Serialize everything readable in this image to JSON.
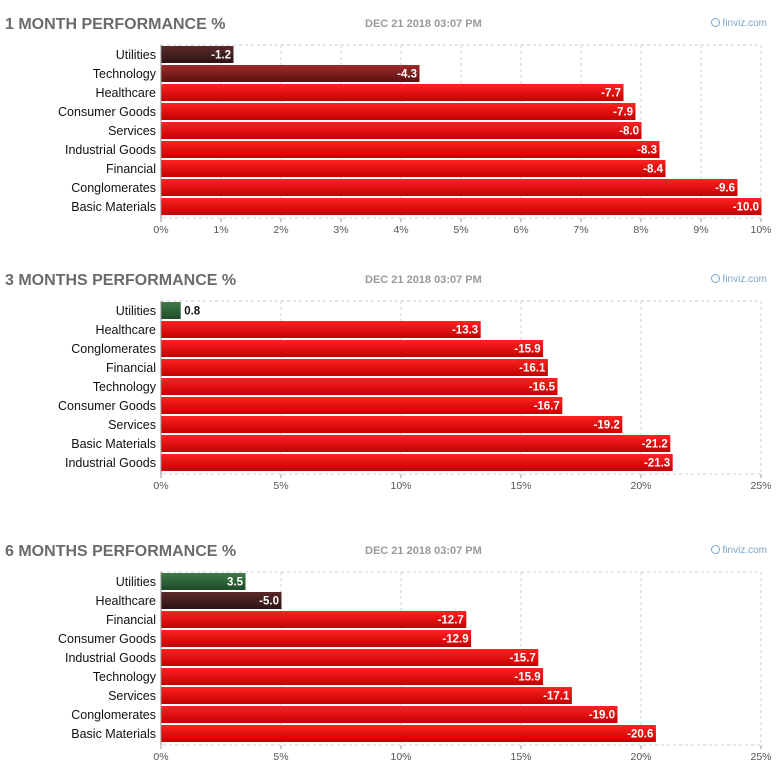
{
  "chart_data": [
    {
      "type": "bar",
      "title": "1 MONTH PERFORMANCE %",
      "timestamp": "DEC 21 2018 03:07 PM",
      "brand": "finviz.com",
      "orientation": "horizontal",
      "categories": [
        "Utilities",
        "Technology",
        "Healthcare",
        "Consumer Goods",
        "Services",
        "Industrial Goods",
        "Financial",
        "Conglomerates",
        "Basic Materials"
      ],
      "values": [
        -1.2,
        -4.3,
        -7.7,
        -7.9,
        -8.0,
        -8.3,
        -8.4,
        -9.6,
        -10.0
      ],
      "value_labels": [
        "-1.2",
        "-4.3",
        "-7.7",
        "-7.9",
        "-8.0",
        "-8.3",
        "-8.4",
        "-9.6",
        "-10.0"
      ],
      "xlim": [
        0,
        10
      ],
      "ticks": [
        0,
        1,
        2,
        3,
        4,
        5,
        6,
        7,
        8,
        9,
        10
      ],
      "tick_labels": [
        "0%",
        "1%",
        "2%",
        "3%",
        "4%",
        "5%",
        "6%",
        "7%",
        "8%",
        "9%",
        "10%"
      ],
      "grid": true
    },
    {
      "type": "bar",
      "title": "3 MONTHS PERFORMANCE %",
      "timestamp": "DEC 21 2018 03:07 PM",
      "brand": "finviz.com",
      "orientation": "horizontal",
      "categories": [
        "Utilities",
        "Healthcare",
        "Conglomerates",
        "Financial",
        "Technology",
        "Consumer Goods",
        "Services",
        "Basic Materials",
        "Industrial Goods"
      ],
      "values": [
        0.8,
        -13.3,
        -15.9,
        -16.1,
        -16.5,
        -16.7,
        -19.2,
        -21.2,
        -21.3
      ],
      "value_labels": [
        "0.8",
        "-13.3",
        "-15.9",
        "-16.1",
        "-16.5",
        "-16.7",
        "-19.2",
        "-21.2",
        "-21.3"
      ],
      "xlim": [
        0,
        25
      ],
      "ticks": [
        0,
        5,
        10,
        15,
        20,
        25
      ],
      "tick_labels": [
        "0%",
        "5%",
        "10%",
        "15%",
        "20%",
        "25%"
      ],
      "grid": true
    },
    {
      "type": "bar",
      "title": "6 MONTHS PERFORMANCE %",
      "timestamp": "DEC 21 2018 03:07 PM",
      "brand": "finviz.com",
      "orientation": "horizontal",
      "categories": [
        "Utilities",
        "Healthcare",
        "Financial",
        "Consumer Goods",
        "Industrial Goods",
        "Technology",
        "Services",
        "Conglomerates",
        "Basic Materials"
      ],
      "values": [
        3.5,
        -5.0,
        -12.7,
        -12.9,
        -15.7,
        -15.9,
        -17.1,
        -19.0,
        -20.6
      ],
      "value_labels": [
        "3.5",
        "-5.0",
        "-12.7",
        "-12.9",
        "-15.7",
        "-15.9",
        "-17.1",
        "-19.0",
        "-20.6"
      ],
      "xlim": [
        0,
        25
      ],
      "ticks": [
        0,
        5,
        10,
        15,
        20,
        25
      ],
      "tick_labels": [
        "0%",
        "5%",
        "10%",
        "15%",
        "20%",
        "25%"
      ],
      "grid": true
    }
  ]
}
